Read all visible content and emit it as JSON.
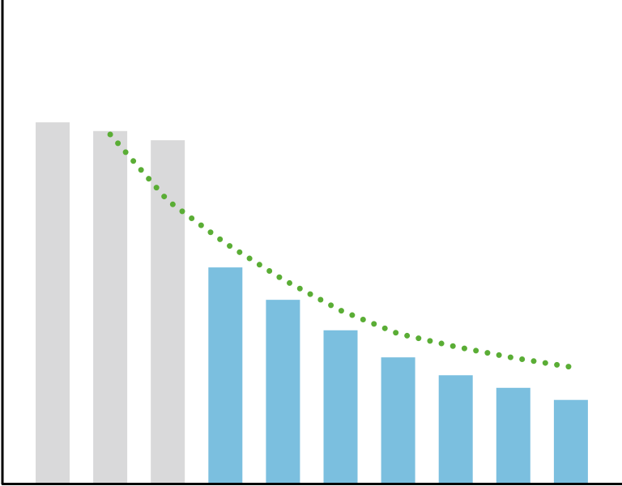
{
  "chart_data": {
    "type": "bar",
    "categories": [
      null,
      null,
      null,
      null,
      null,
      null,
      null,
      null,
      null,
      null
    ],
    "values": [
      74.7,
      72.9,
      71.0,
      44.7,
      38.0,
      31.7,
      26.1,
      22.4,
      19.8,
      17.3
    ],
    "colors": [
      "#d9d9da",
      "#d9d9da",
      "#d9d9da",
      "#7bbfdf",
      "#7bbfdf",
      "#7bbfdf",
      "#7bbfdf",
      "#7bbfdf",
      "#7bbfdf",
      "#7bbfdf"
    ],
    "trend": {
      "color": "#5aad35",
      "values": [
        null,
        72.2,
        58.5,
        49.7,
        42.2,
        35.8,
        31.0,
        28.3,
        26.0,
        24.1
      ]
    },
    "ylim": [
      0,
      100
    ]
  }
}
